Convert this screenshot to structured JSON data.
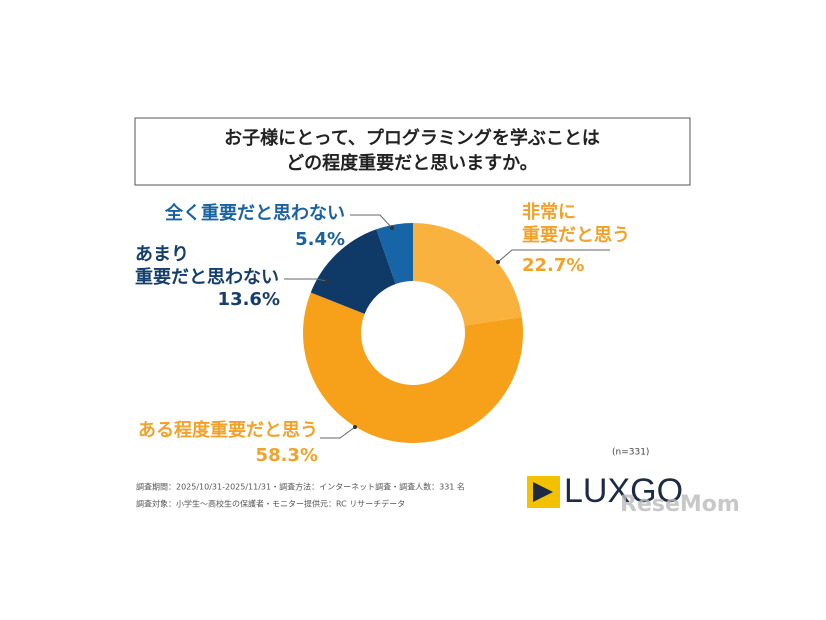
{
  "chart_data": {
    "type": "donut",
    "title": [
      "お子様にとって、プログラミングを学ぶことは",
      "どの程度重要だと思いますか。"
    ],
    "categories": [
      [
        "非常に",
        "重要だと思う"
      ],
      [
        "ある程度重要だと思う"
      ],
      [
        "あまり",
        "重要だと思わない"
      ],
      [
        "全く重要だと思わない"
      ]
    ],
    "values": [
      22.7,
      58.3,
      13.6,
      5.4
    ],
    "value_labels": [
      "22.7%",
      "58.3%",
      "13.6%",
      "5.4%"
    ],
    "colors": [
      "#f9b23e",
      "#f7a11a",
      "#0f3a68",
      "#1764a6"
    ],
    "label_colors": [
      "#f2a22a",
      "#f2a22a",
      "#163e6b",
      "#1a62a0"
    ],
    "sample_note": "(n=331)",
    "footnotes": [
      "調査期間：2025/10/31-2025/11/31・調査方法：インターネット調査・調査人数：331 名",
      "調査対象：小学生～高校生の保護者・モニター提供元：RC リサーチデータ"
    ],
    "logo": "LUXGO",
    "watermark": "ReseMom"
  }
}
